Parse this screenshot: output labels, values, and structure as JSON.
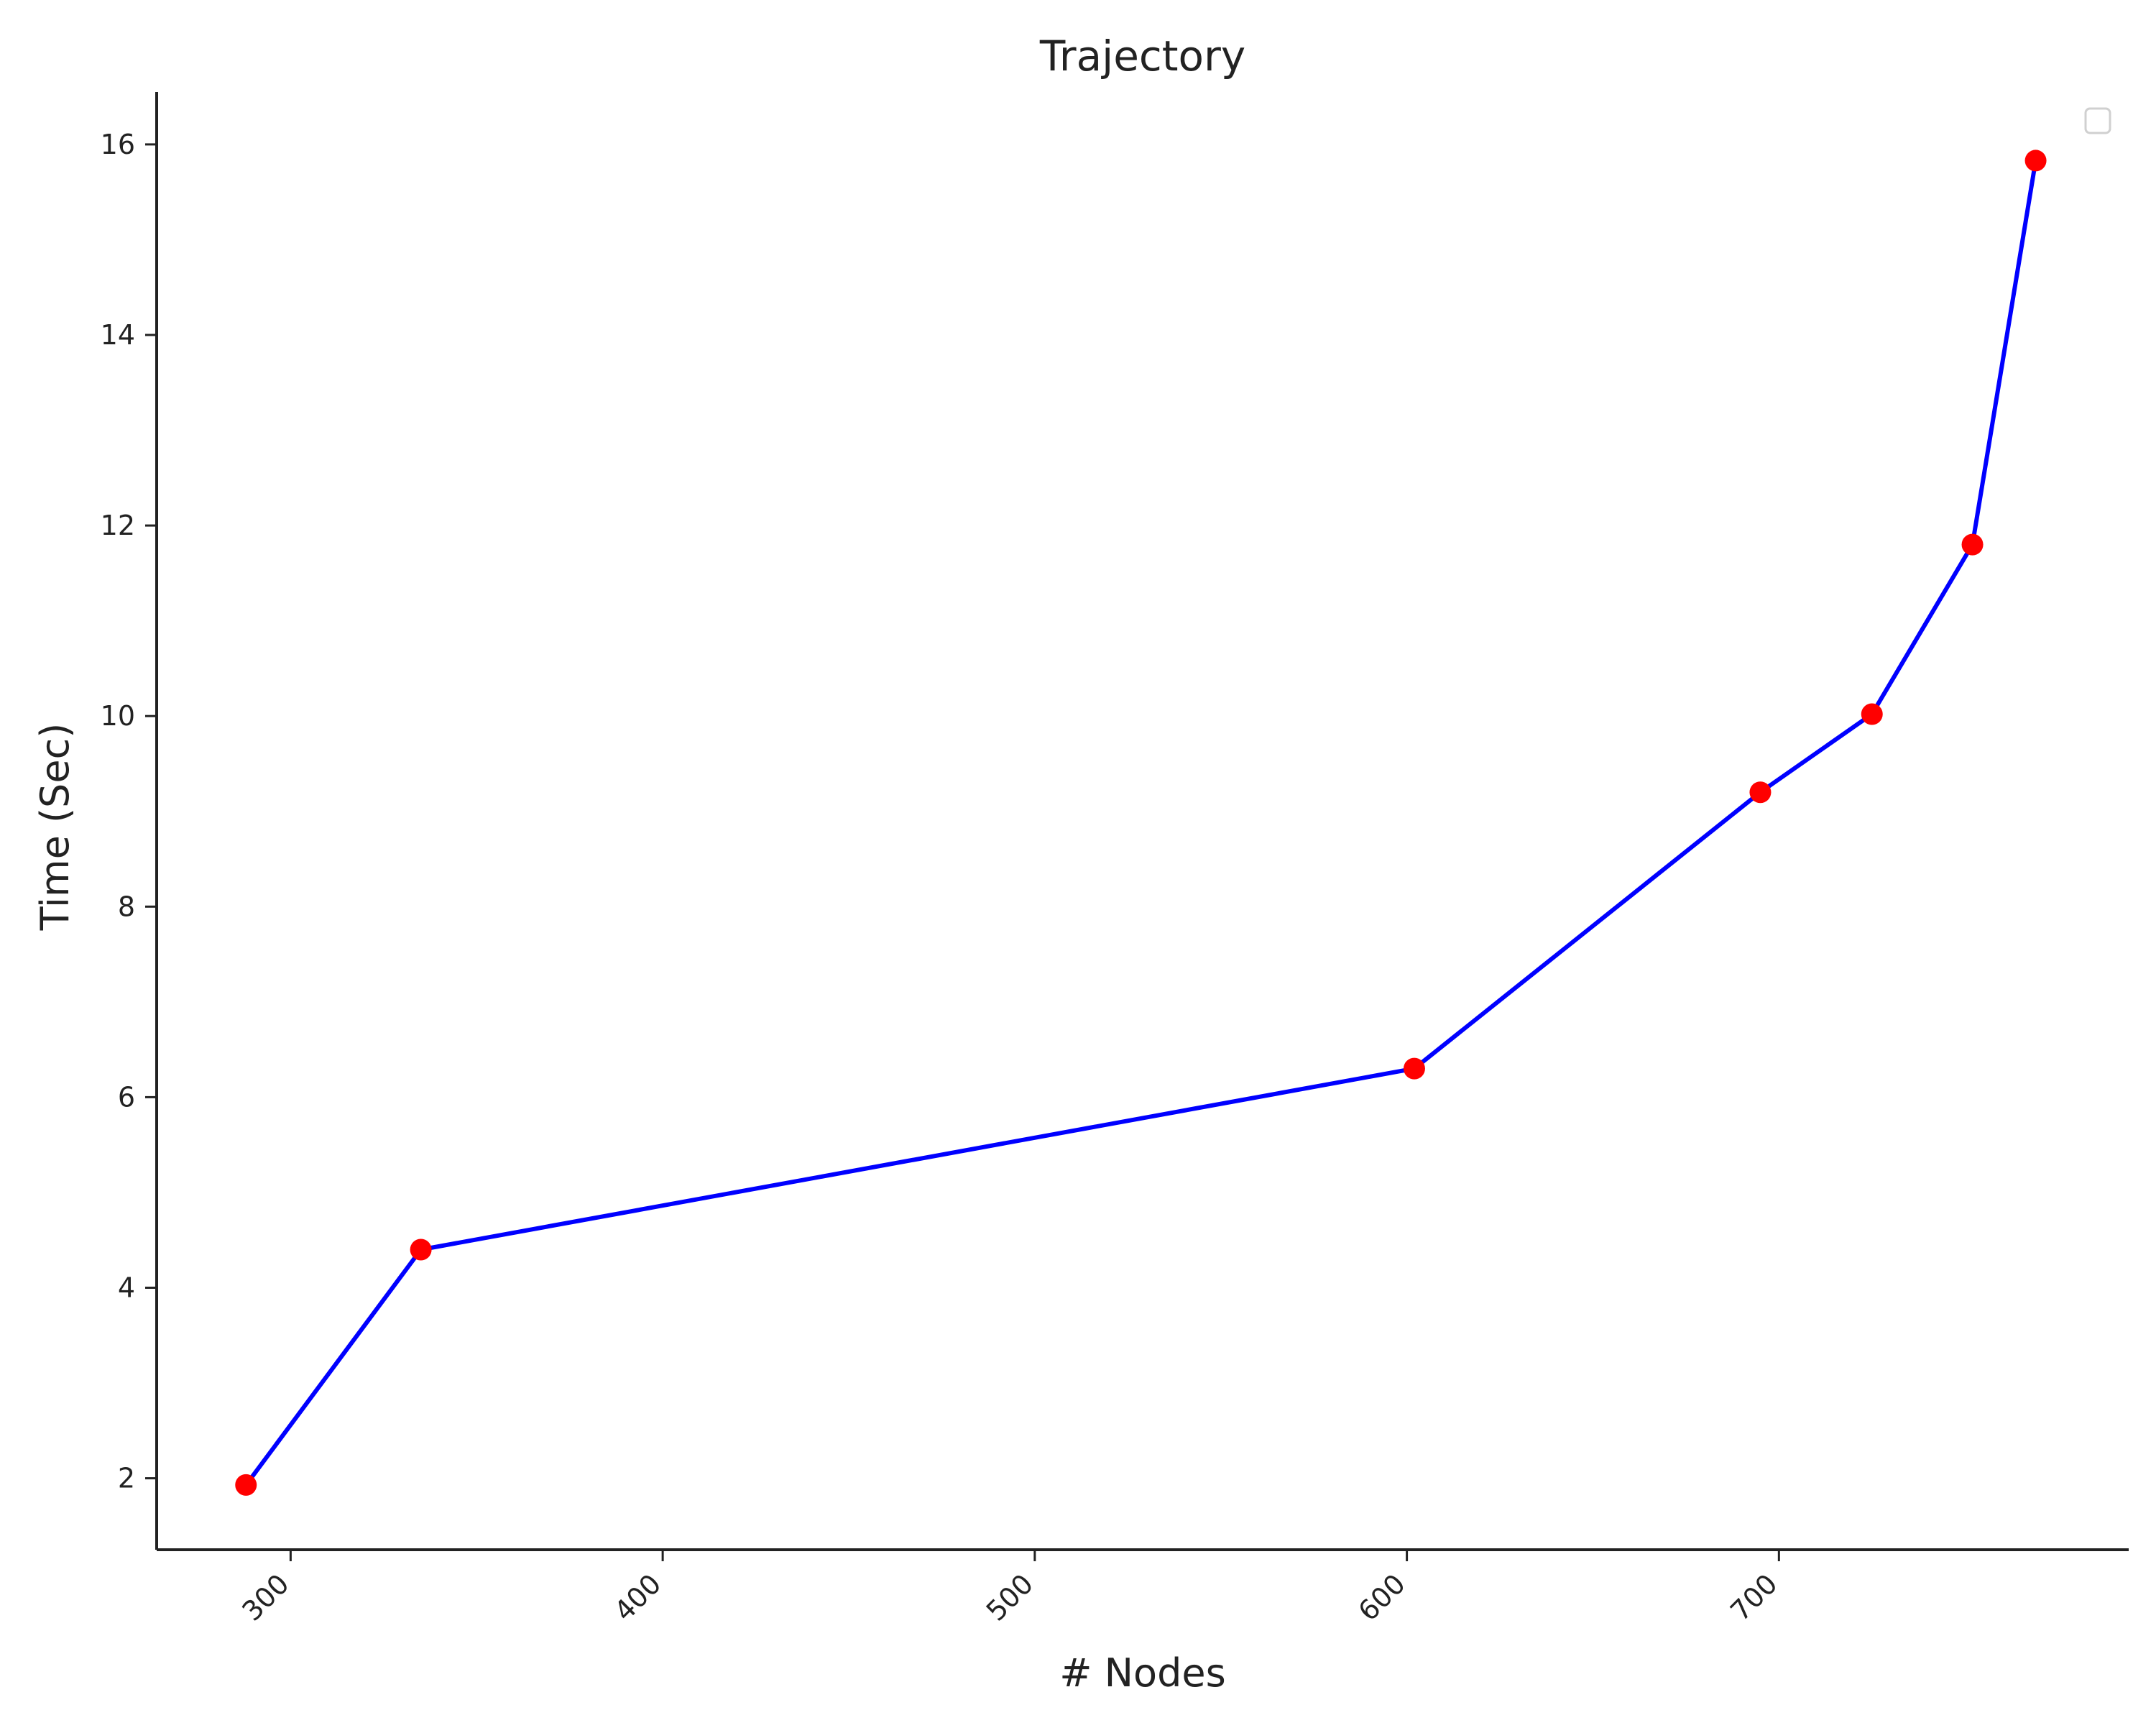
{
  "chart_data": {
    "type": "line",
    "title": "Trajectory",
    "xlabel": "# Nodes",
    "ylabel": "Time (Sec)",
    "xlim": [
      264,
      794
    ],
    "ylim": [
      1.25,
      16.55
    ],
    "x_ticks": [
      300,
      400,
      500,
      600,
      700
    ],
    "y_ticks": [
      2,
      4,
      6,
      8,
      10,
      12,
      14,
      16
    ],
    "grid": false,
    "legend": "top-right, empty",
    "series": [
      {
        "x": [
          288,
          335,
          602,
          695,
          725,
          752,
          769
        ],
        "y": [
          1.93,
          4.4,
          6.3,
          9.2,
          10.02,
          11.8,
          15.83
        ],
        "line_color": "#0000ff",
        "marker_color": "#ff0000"
      }
    ]
  }
}
